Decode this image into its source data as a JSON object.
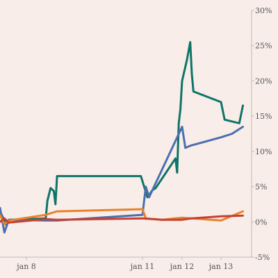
{
  "chart_data": {
    "type": "line",
    "title": "",
    "xlabel": "",
    "ylabel": "",
    "x_ticks": [
      "jan 8",
      "jan 11",
      "jan 12",
      "jan 13"
    ],
    "y_ticks": [
      "30%",
      "25%",
      "20%",
      "15%",
      "10%",
      "5%",
      "0%",
      "-5%"
    ],
    "y_tick_values": [
      30,
      25,
      20,
      15,
      10,
      5,
      0,
      -5
    ],
    "ylim": [
      -5,
      30
    ],
    "y_unit": "%",
    "grid": false,
    "legend": "none",
    "background": "#f8ede8",
    "axis_color": "#bbbbbb",
    "series": [
      {
        "color": "#0e7467",
        "points": [
          [
            "jan 7 00:00",
            1.5
          ],
          [
            "jan 7 06:00",
            -0.5
          ],
          [
            "jan 7 08:00",
            0.3
          ],
          [
            "jan 8 12:00",
            0.5
          ],
          [
            "jan 8 13:00",
            3
          ],
          [
            "jan 8 15:00",
            4.8
          ],
          [
            "jan 8 17:00",
            4.4
          ],
          [
            "jan 8 18:00",
            2.5
          ],
          [
            "jan 8 19:00",
            6.5
          ],
          [
            "jan 10 23:00",
            6.5
          ],
          [
            "jan 11 01:00",
            5
          ],
          [
            "jan 11 03:00",
            3.5
          ],
          [
            "jan 11 06:00",
            4.5
          ],
          [
            "jan 11 08:00",
            4.8
          ],
          [
            "jan 11 20:00",
            9
          ],
          [
            "jan 11 21:00",
            7
          ],
          [
            "jan 11 22:00",
            14
          ],
          [
            "jan 11 23:00",
            16
          ],
          [
            "jan 12 00:00",
            20
          ],
          [
            "jan 12 03:00",
            23
          ],
          [
            "jan 12 05:00",
            25.5
          ],
          [
            "jan 12 06:00",
            21
          ],
          [
            "jan 12 07:00",
            18.5
          ],
          [
            "jan 13 00:00",
            17
          ],
          [
            "jan 13 01:00",
            14.5
          ],
          [
            "jan 13 05:00",
            14
          ],
          [
            "jan 13 06:00",
            16.5
          ]
        ]
      },
      {
        "color": "#4c6eb0",
        "points": [
          [
            "jan 7 00:00",
            2
          ],
          [
            "jan 7 04:00",
            -1.5
          ],
          [
            "jan 7 08:00",
            0.3
          ],
          [
            "jan 8 12:00",
            0.2
          ],
          [
            "jan 8 19:00",
            0.2
          ],
          [
            "jan 11 00:00",
            1
          ],
          [
            "jan 11 02:00",
            5
          ],
          [
            "jan 11 04:00",
            3.5
          ],
          [
            "jan 11 06:00",
            4.5
          ],
          [
            "jan 12 00:00",
            13.5
          ],
          [
            "jan 12 02:00",
            10.5
          ],
          [
            "jan 12 05:00",
            10.8
          ],
          [
            "jan 13 00:00",
            12
          ],
          [
            "jan 13 03:00",
            12.5
          ],
          [
            "jan 13 06:00",
            13.5
          ]
        ]
      },
      {
        "color": "#e8822e",
        "points": [
          [
            "jan 7 00:00",
            1
          ],
          [
            "jan 7 04:00",
            -0.3
          ],
          [
            "jan 7 08:00",
            0.2
          ],
          [
            "jan 8 12:00",
            1
          ],
          [
            "jan 8 19:00",
            1.5
          ],
          [
            "jan 11 00:00",
            1.8
          ],
          [
            "jan 11 02:00",
            0.5
          ],
          [
            "jan 11 12:00",
            0.3
          ],
          [
            "jan 12 00:00",
            0.6
          ],
          [
            "jan 13 00:00",
            0.2
          ],
          [
            "jan 13 06:00",
            1.5
          ]
        ]
      },
      {
        "color": "#c64034",
        "points": [
          [
            "jan 7 00:00",
            0
          ],
          [
            "jan 7 04:00",
            0.5
          ],
          [
            "jan 7 08:00",
            -0.1
          ],
          [
            "jan 8 12:00",
            0.4
          ],
          [
            "jan 8 19:00",
            0.3
          ],
          [
            "jan 11 00:00",
            0.5
          ],
          [
            "jan 11 12:00",
            0.3
          ],
          [
            "jan 12 00:00",
            0.3
          ],
          [
            "jan 12 06:00",
            0.5
          ],
          [
            "jan 13 00:00",
            0.8
          ],
          [
            "jan 13 06:00",
            0.9
          ]
        ]
      }
    ]
  }
}
